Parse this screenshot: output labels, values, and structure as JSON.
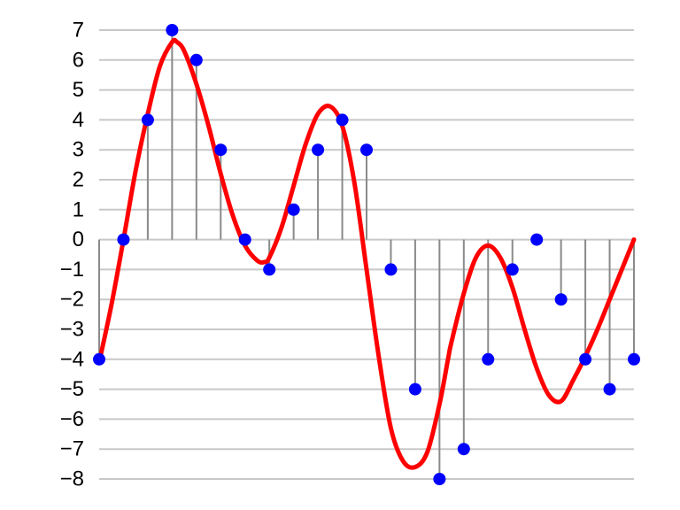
{
  "chart_data": {
    "type": "scatter",
    "title": "",
    "xlabel": "",
    "ylabel": "",
    "ylim": [
      -8,
      7
    ],
    "yticks": [
      7,
      6,
      5,
      4,
      3,
      2,
      1,
      0,
      -1,
      -2,
      -3,
      -4,
      -5,
      -6,
      -7,
      -8
    ],
    "ytick_labels": [
      "7",
      "6",
      "5",
      "4",
      "3",
      "2",
      "1",
      "0",
      "−1",
      "−2",
      "−3",
      "−4",
      "−5",
      "−6",
      "−7",
      "−8"
    ],
    "grid": true,
    "x": [
      0,
      1,
      2,
      3,
      4,
      5,
      6,
      7,
      8,
      9,
      10,
      11,
      12,
      13,
      14,
      15,
      16,
      17,
      18,
      19,
      20,
      21,
      22
    ],
    "samples": [
      -4,
      0,
      4,
      7,
      6,
      3,
      0,
      -1,
      1,
      3,
      4,
      3,
      -1,
      -5,
      -8,
      -7,
      -4,
      -1,
      0,
      -2,
      -4,
      -5,
      -4
    ],
    "curve": {
      "x": [
        0,
        0.5,
        1,
        1.5,
        2,
        2.5,
        3,
        3.2,
        3.5,
        4,
        4.5,
        5,
        5.5,
        6,
        6.5,
        6.8,
        7,
        7.5,
        8,
        8.5,
        9,
        9.5,
        10,
        10.5,
        11,
        11.5,
        12,
        12.5,
        13,
        13.5,
        14,
        14.35,
        14.5,
        15,
        15.5,
        16,
        16.5,
        17,
        17.5,
        18,
        18.5,
        19,
        19.5,
        20,
        20.5,
        21,
        21.2,
        21.5,
        22
      ],
      "y": [
        -4.1,
        -2.2,
        0,
        2.3,
        4.2,
        5.8,
        6.6,
        6.6,
        6.3,
        5.2,
        3.8,
        2.2,
        0.8,
        -0.2,
        -0.7,
        -0.75,
        -0.6,
        0.4,
        1.8,
        3.2,
        4.2,
        4.45,
        3.8,
        1.9,
        -1,
        -3.9,
        -6.3,
        -7.4,
        -7.6,
        -7.1,
        -5.5,
        -4,
        -3.4,
        -1.8,
        -0.6,
        -0.2,
        -0.6,
        -1.6,
        -3,
        -4.3,
        -5.2,
        -5.4,
        -4.7,
        -3.9,
        -3,
        -2,
        -1.6,
        -1,
        0
      ]
    },
    "colors": {
      "curve": "#ff0000",
      "points": "#0000ff",
      "stems": "#8a8a8a",
      "grid": "#c8c8c8"
    }
  }
}
